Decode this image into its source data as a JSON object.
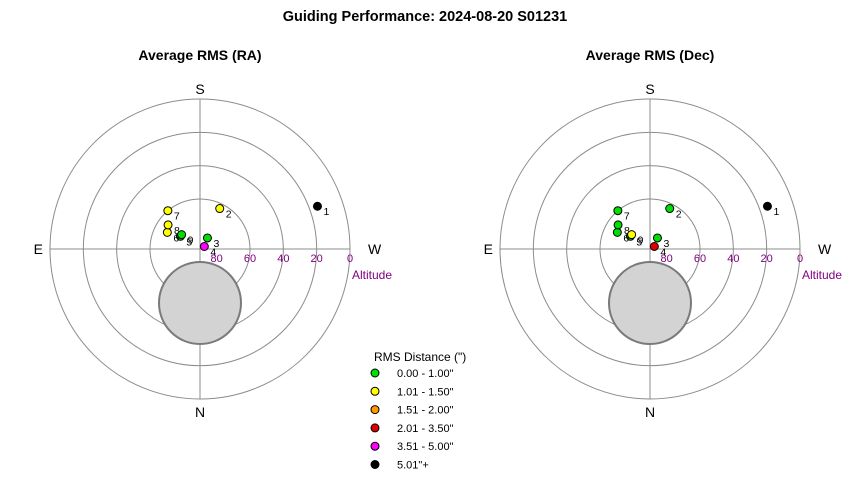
{
  "title": "Guiding Performance: 2024-08-20 S01231",
  "cardinals": {
    "top": "S",
    "bottom": "N",
    "left": "E",
    "right": "W"
  },
  "altitude_label": "Altitude",
  "altitude_ticks": [
    "80",
    "60",
    "40",
    "20",
    "0"
  ],
  "legend": {
    "title": "RMS Distance (\")",
    "items": [
      {
        "label": "0.00 - 1.00\"",
        "color": "#00e000"
      },
      {
        "label": "1.01 - 1.50\"",
        "color": "#ffff00"
      },
      {
        "label": "1.51 - 2.00\"",
        "color": "#ff9900"
      },
      {
        "label": "2.01 - 3.50\"",
        "color": "#e00000"
      },
      {
        "label": "3.51 - 5.00\"",
        "color": "#ff00ff"
      },
      {
        "label": "5.01\"+",
        "color": "#000000"
      }
    ]
  },
  "chart_data": [
    {
      "type": "scatter",
      "title": "Average RMS (RA)",
      "coordinates": "polar altitude/azimuth, S at top, E at left, W at right, altitude 90 at center to 0 at edge",
      "obstruction": "shaded disc below zenith on N side",
      "points": [
        {
          "label": "1",
          "azimuth_deg": 250,
          "altitude_deg": 15,
          "color": "#000000"
        },
        {
          "label": "2",
          "azimuth_deg": 206,
          "altitude_deg": 63,
          "color": "#ffff00"
        },
        {
          "label": "3",
          "azimuth_deg": 214,
          "altitude_deg": 82,
          "color": "#00e000"
        },
        {
          "label": "4",
          "azimuth_deg": 240,
          "altitude_deg": 87,
          "color": "#ff00ff"
        },
        {
          "label": "5",
          "azimuth_deg": 123,
          "altitude_deg": 76,
          "color": "#00e000"
        },
        {
          "label": "6",
          "azimuth_deg": 117,
          "altitude_deg": 68,
          "color": "#ffff00"
        },
        {
          "label": "7",
          "azimuth_deg": 140,
          "altitude_deg": 60,
          "color": "#ffff00"
        },
        {
          "label": "8",
          "azimuth_deg": 127,
          "altitude_deg": 66,
          "color": "#ffff00"
        },
        {
          "label": "9",
          "azimuth_deg": 128,
          "altitude_deg": 76,
          "color": "#00e000"
        }
      ]
    },
    {
      "type": "scatter",
      "title": "Average RMS (Dec)",
      "coordinates": "polar altitude/azimuth, S at top, E at left, W at right, altitude 90 at center to 0 at edge",
      "obstruction": "shaded disc below zenith on N side",
      "points": [
        {
          "label": "1",
          "azimuth_deg": 250,
          "altitude_deg": 15,
          "color": "#000000"
        },
        {
          "label": "2",
          "azimuth_deg": 206,
          "altitude_deg": 63,
          "color": "#00e000"
        },
        {
          "label": "3",
          "azimuth_deg": 214,
          "altitude_deg": 82,
          "color": "#00e000"
        },
        {
          "label": "4",
          "azimuth_deg": 240,
          "altitude_deg": 87,
          "color": "#e00000"
        },
        {
          "label": "5",
          "azimuth_deg": 123,
          "altitude_deg": 76,
          "color": "#00e000"
        },
        {
          "label": "6",
          "azimuth_deg": 117,
          "altitude_deg": 68,
          "color": "#00e000"
        },
        {
          "label": "7",
          "azimuth_deg": 140,
          "altitude_deg": 60,
          "color": "#00e000"
        },
        {
          "label": "8",
          "azimuth_deg": 127,
          "altitude_deg": 66,
          "color": "#00e000"
        },
        {
          "label": "9",
          "azimuth_deg": 128,
          "altitude_deg": 76,
          "color": "#ffff00"
        }
      ]
    }
  ]
}
